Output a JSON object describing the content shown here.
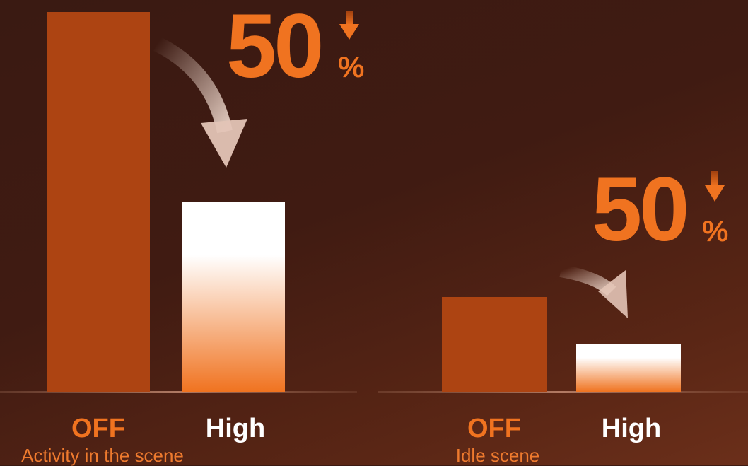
{
  "chart_data": [
    {
      "type": "bar",
      "categories": [
        "OFF",
        "High"
      ],
      "values": [
        100,
        50
      ],
      "ylim": [
        0,
        100
      ],
      "caption": "Activity in the scene",
      "annotation": {
        "value": "50",
        "unit": "%",
        "direction": "down"
      }
    },
    {
      "type": "bar",
      "categories": [
        "OFF",
        "High"
      ],
      "values": [
        100,
        50
      ],
      "ylim": [
        0,
        100
      ],
      "caption": "Idle scene",
      "annotation": {
        "value": "50",
        "unit": "%",
        "direction": "down"
      }
    }
  ],
  "colors": {
    "off_bar": "#ad4412",
    "high_bar_top": "#ffffff",
    "high_bar_bottom": "#f07320",
    "accent": "#f07320",
    "high_label": "#ffffff"
  }
}
